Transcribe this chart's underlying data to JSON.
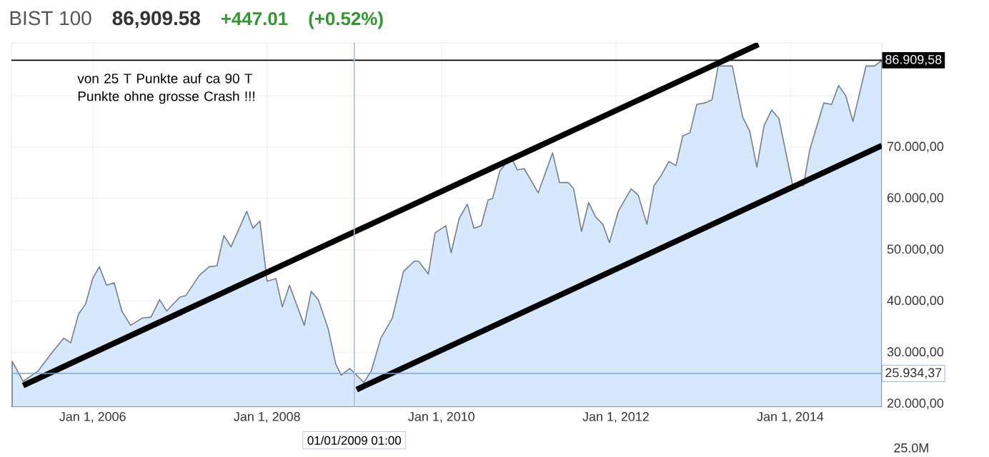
{
  "chart_data": {
    "type": "area",
    "title": "BIST 100",
    "subtitle": "86,909.58",
    "annotations": [
      "+447.01",
      "(+0.52%)",
      "von 25 T Punkte auf ca 90 T Punkte ohne grosse Crash !!!",
      "25.0M"
    ],
    "xlim": [
      "2005-01-26",
      "2015-01-19"
    ],
    "ylim": [
      19400,
      90300
    ],
    "xticks": [
      {
        "value": "2006-01-01",
        "label": "Jan 1, 2006"
      },
      {
        "value": "2008-01-01",
        "label": "Jan 1, 2008"
      },
      {
        "value": "2010-01-01",
        "label": "Jan 1, 2010"
      },
      {
        "value": "2012-01-01",
        "label": "Jan 1, 2012"
      },
      {
        "value": "2014-01-01",
        "label": "Jan 1, 2014"
      }
    ],
    "yticks": [
      {
        "value": 20000,
        "label": "20.000,00"
      },
      {
        "value": 30000,
        "label": "30.000,00"
      },
      {
        "value": 40000,
        "label": "40.000,00"
      },
      {
        "value": 50000,
        "label": "50.000,00"
      },
      {
        "value": 60000,
        "label": "60.000,00"
      },
      {
        "value": 70000,
        "label": "70.000,00"
      },
      {
        "value": 80000,
        "label": null
      }
    ],
    "grid": true,
    "ref_lines": [
      {
        "axis": "y",
        "value": 86909.58,
        "label": "86.909,58",
        "color": "#000000"
      },
      {
        "axis": "y",
        "value": 25934.37,
        "label": "25.934,37",
        "color": "#7da7d9"
      },
      {
        "axis": "x",
        "value": "2009-01-01",
        "label": "01/01/2009 01:00",
        "color": "#a9bedb"
      }
    ],
    "series": [
      {
        "color": "#d6e8fb",
        "x": [
          "2005-01-29",
          "2005-03-16",
          "2005-05-17",
          "2005-07-15",
          "2005-09-02",
          "2005-10-01",
          "2005-11-03",
          "2005-12-02",
          "2006-01-01",
          "2006-01-29",
          "2006-02-28",
          "2006-04-01",
          "2006-05-03",
          "2006-06-09",
          "2006-07-26",
          "2006-09-02",
          "2006-10-08",
          "2006-11-07",
          "2007-01-01",
          "2007-01-26",
          "2007-03-23",
          "2007-05-03",
          "2007-06-05",
          "2007-07-04",
          "2007-08-03",
          "2007-10-08",
          "2007-11-03",
          "2007-12-02",
          "2008-01-01",
          "2008-02-07",
          "2008-03-05",
          "2008-04-04",
          "2008-06-05",
          "2008-07-04",
          "2008-08-03",
          "2008-09-13",
          "2008-10-15",
          "2008-11-07",
          "2008-12-13",
          "2009-02-10",
          "2009-03-13",
          "2009-04-22",
          "2009-06-09",
          "2009-07-26",
          "2009-09-09",
          "2009-09-27",
          "2009-11-07",
          "2009-12-05",
          "2010-01-19",
          "2010-02-10",
          "2010-03-16",
          "2010-04-19",
          "2010-05-17",
          "2010-06-16",
          "2010-07-15",
          "2010-08-03",
          "2010-09-02",
          "2010-10-19",
          "2010-11-14",
          "2010-12-13",
          "2011-02-10",
          "2011-04-11",
          "2011-05-10",
          "2011-06-16",
          "2011-07-08",
          "2011-08-10",
          "2011-09-09",
          "2011-10-08",
          "2011-11-07",
          "2011-12-05",
          "2012-01-11",
          "2012-03-05",
          "2012-04-04",
          "2012-05-10",
          "2012-06-09",
          "2012-07-08",
          "2012-08-10",
          "2012-09-09",
          "2012-10-08",
          "2012-11-07",
          "2012-12-05",
          "2013-01-08",
          "2013-02-07",
          "2013-03-05",
          "2013-05-03",
          "2013-06-16",
          "2013-07-15",
          "2013-08-14",
          "2013-09-13",
          "2013-10-15",
          "2013-11-14",
          "2014-01-11",
          "2014-02-25",
          "2014-03-23",
          "2014-05-21",
          "2014-06-23",
          "2014-07-22",
          "2014-08-21",
          "2014-09-20",
          "2014-11-14",
          "2014-12-20",
          "2015-01-19"
        ],
        "values": [
          28300,
          24400,
          26400,
          30000,
          32800,
          31900,
          37500,
          39400,
          44400,
          46700,
          43100,
          43600,
          38100,
          35300,
          36700,
          36900,
          40300,
          38100,
          40800,
          41100,
          45000,
          46700,
          46900,
          52800,
          50600,
          57500,
          54200,
          55600,
          43900,
          44400,
          38900,
          43100,
          35300,
          41900,
          40300,
          34700,
          27800,
          25600,
          26900,
          24200,
          26400,
          32800,
          36700,
          45800,
          47800,
          47800,
          45300,
          53300,
          54700,
          49400,
          56100,
          58900,
          54200,
          54700,
          59700,
          60000,
          65300,
          68100,
          65600,
          65800,
          61100,
          68900,
          63100,
          63100,
          61900,
          53600,
          59200,
          56400,
          55000,
          51400,
          57500,
          61900,
          60600,
          55000,
          62500,
          64400,
          67200,
          66400,
          72200,
          72800,
          78300,
          78600,
          79200,
          85800,
          85800,
          75800,
          73100,
          66100,
          74200,
          77200,
          75600,
          62500,
          62500,
          69400,
          78600,
          78300,
          82000,
          80000,
          75000,
          85800,
          85800,
          86900
        ]
      },
      {
        "type": "line",
        "color": "#000000",
        "x": [
          "2005-03-16",
          "2013-08-21"
        ],
        "values": [
          23600,
          90000
        ]
      },
      {
        "type": "line",
        "color": "#000000",
        "x": [
          "2009-01-11",
          "2015-01-19"
        ],
        "values": [
          22800,
          70300
        ]
      }
    ]
  }
}
